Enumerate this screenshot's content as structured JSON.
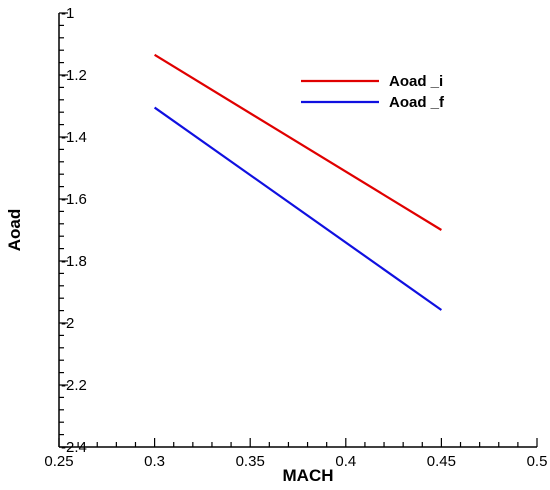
{
  "chart_data": {
    "type": "line",
    "xlabel": "MACH",
    "ylabel": "Aoad",
    "xlim": [
      0.25,
      0.5
    ],
    "ylim": [
      -2.4,
      -1
    ],
    "xticks": [
      0.25,
      0.3,
      0.35,
      0.4,
      0.45,
      0.5
    ],
    "xtick_labels": [
      "0.25",
      "0.3",
      "0.35",
      "0.4",
      "0.45",
      "0.5"
    ],
    "yticks": [
      -2.4,
      -2.2,
      -2,
      -1.8,
      -1.6,
      -1.4,
      -1.2,
      -1
    ],
    "ytick_labels": [
      "-2.4",
      "-2.2",
      "-2",
      "-1.8",
      "-1.6",
      "-1.4",
      "-1.2",
      "-1"
    ],
    "grid": false,
    "legend_position": "top-right",
    "series": [
      {
        "name": "Aoad _i",
        "color": "#e00000",
        "x": [
          0.3,
          0.45
        ],
        "y": [
          -1.135,
          -1.7
        ]
      },
      {
        "name": "Aoad _f",
        "color": "#1010e0",
        "x": [
          0.3,
          0.45
        ],
        "y": [
          -1.305,
          -1.958
        ]
      }
    ]
  }
}
